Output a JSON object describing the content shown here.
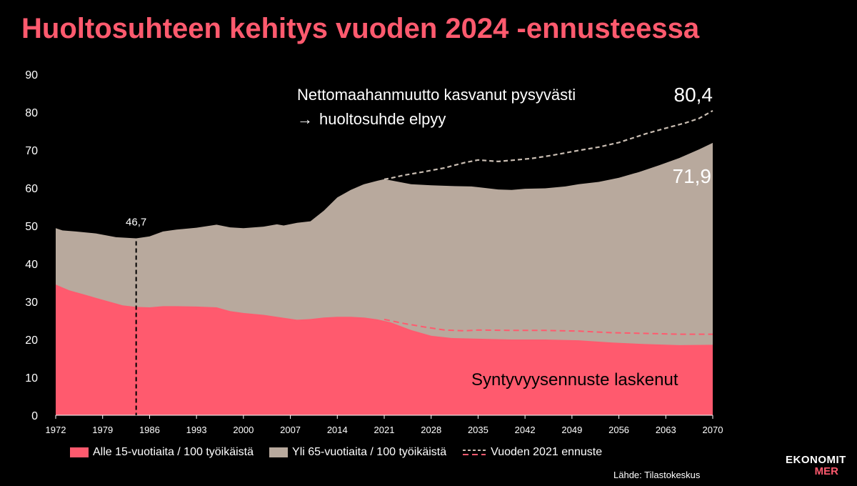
{
  "title": "Huoltosuhteen kehitys vuoden 2024 -ennusteessa",
  "colors": {
    "title": "#ff5a6e",
    "young": "#ff5a6e",
    "old": "#b8a99d",
    "forecast2021": "#c9bdb2",
    "forecast2021_young": "#ff5a6e",
    "background": "#000000",
    "baseline_marker": "#000000"
  },
  "chart_data": {
    "type": "area",
    "stacked": true,
    "ylim": [
      0,
      90
    ],
    "xlim": [
      1972,
      2070
    ],
    "yticks": [
      "0",
      "10",
      "20",
      "30",
      "40",
      "50",
      "60",
      "70",
      "80",
      "90"
    ],
    "xticks": [
      "1972",
      "1979",
      "1986",
      "1993",
      "2000",
      "2007",
      "2014",
      "2021",
      "2028",
      "2035",
      "2042",
      "2049",
      "2056",
      "2063",
      "2070"
    ],
    "grid": false,
    "legend_position": "bottom",
    "series": [
      {
        "name": "Alle 15-vuotiaita / 100 työikäistä",
        "kind": "area",
        "x": [
          1972,
          1974,
          1976,
          1978,
          1980,
          1982,
          1984,
          1986,
          1988,
          1990,
          1993,
          1996,
          1998,
          2000,
          2003,
          2005,
          2008,
          2010,
          2012,
          2014,
          2016,
          2018,
          2020,
          2022,
          2025,
          2028,
          2031,
          2035,
          2040,
          2045,
          2050,
          2055,
          2060,
          2065,
          2070
        ],
        "values": [
          34.5,
          33.0,
          32.0,
          31.0,
          30.0,
          29.0,
          28.6,
          28.5,
          28.8,
          28.8,
          28.7,
          28.5,
          27.5,
          27.0,
          26.5,
          26.0,
          25.2,
          25.4,
          25.8,
          26.0,
          26.0,
          25.8,
          25.3,
          24.5,
          22.5,
          21.0,
          20.4,
          20.2,
          20.0,
          20.0,
          19.8,
          19.2,
          18.8,
          18.5,
          18.6
        ]
      },
      {
        "name": "Yli 65-vuotiaita / 100 työikäistä",
        "kind": "area",
        "x": [
          1972,
          1973,
          1975,
          1978,
          1981,
          1984,
          1986,
          1988,
          1990,
          1993,
          1996,
          1998,
          2000,
          2003,
          2005,
          2006,
          2008,
          2010,
          2012,
          2014,
          2016,
          2018,
          2020,
          2021,
          2022,
          2025,
          2028,
          2031,
          2034,
          2035,
          2038,
          2040,
          2042,
          2045,
          2048,
          2050,
          2053,
          2056,
          2059,
          2062,
          2065,
          2068,
          2070
        ],
        "total": [
          49.4,
          48.8,
          48.5,
          48.0,
          47.0,
          46.7,
          47.2,
          48.5,
          49.0,
          49.5,
          50.3,
          49.6,
          49.4,
          49.8,
          50.4,
          50.1,
          50.8,
          51.2,
          54.0,
          57.5,
          59.5,
          61.0,
          61.9,
          62.3,
          62.0,
          61.0,
          60.7,
          60.5,
          60.4,
          60.2,
          59.6,
          59.5,
          59.8,
          59.9,
          60.4,
          61.0,
          61.6,
          62.7,
          64.2,
          66.0,
          67.9,
          70.2,
          71.9
        ]
      },
      {
        "name": "Vuoden 2021 ennuste",
        "kind": "dashed",
        "x": [
          2021,
          2022,
          2024,
          2027,
          2030,
          2033,
          2035,
          2038,
          2040,
          2043,
          2046,
          2050,
          2053,
          2056,
          2060,
          2063,
          2066,
          2068,
          2070
        ],
        "total": [
          62.3,
          62.6,
          63.4,
          64.3,
          65.3,
          66.7,
          67.4,
          67.0,
          67.3,
          67.8,
          68.6,
          69.9,
          70.8,
          72.0,
          74.3,
          75.8,
          77.2,
          78.4,
          80.4
        ],
        "young_x": [
          2021,
          2024,
          2027,
          2030,
          2033,
          2035,
          2040,
          2045,
          2050,
          2055,
          2060,
          2065,
          2070
        ],
        "young_values": [
          25.3,
          24.2,
          23.3,
          22.5,
          22.3,
          22.5,
          22.4,
          22.4,
          22.2,
          21.8,
          21.6,
          21.4,
          21.4
        ]
      }
    ],
    "annotations": {
      "marker_label": "46,7",
      "marker_year": 1984,
      "marker_value": 46.7,
      "top_text_line1": "Nettomaahanmuutto kasvanut pysyvästi",
      "top_text_line2": "huoltosuhde elpyy",
      "arrow_glyph": "→",
      "value_2021_forecast": "80,4",
      "value_2024_forecast": "71,9",
      "bottom_text": "Syntyvyysennuste laskenut"
    }
  },
  "legend": {
    "young": "Alle 15-vuotiaita / 100 työikäistä",
    "old": "Yli 65-vuotiaita / 100 työikäistä",
    "forecast": "Vuoden 2021 ennuste"
  },
  "source": "Lähde: Tilastokeskus",
  "logo": {
    "line1": "EKONOMIT",
    "line2": "MER"
  }
}
